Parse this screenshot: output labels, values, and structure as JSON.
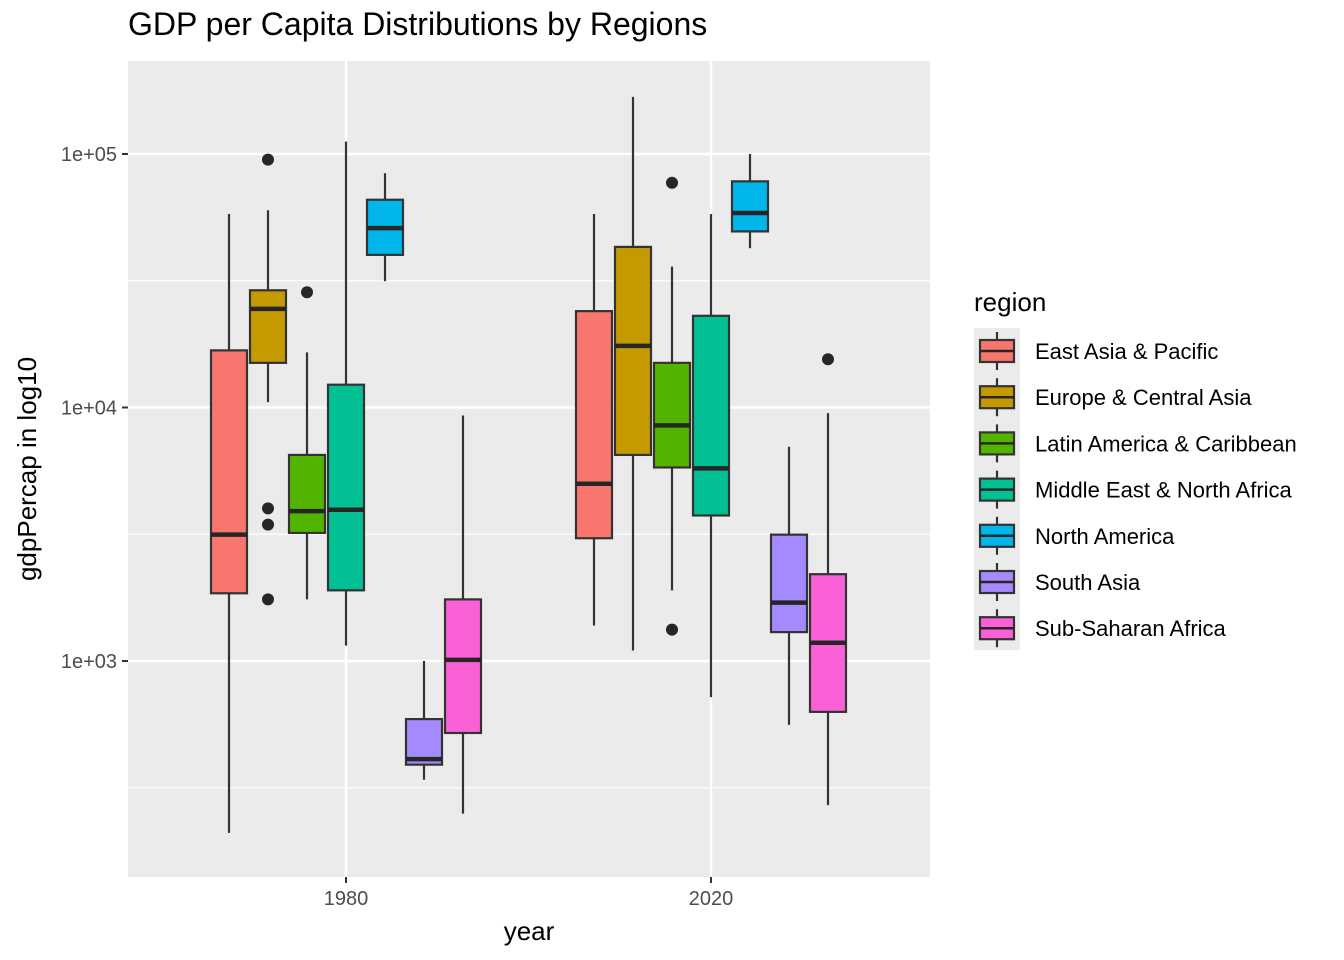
{
  "chart_data": {
    "type": "boxplot",
    "title": "GDP per Capita Distributions by Regions",
    "xlabel": "year",
    "ylabel": "gdpPercap in log10",
    "y_scale": "log10",
    "ylim": [
      150,
      250000
    ],
    "y_ticks": [
      {
        "value": 1000,
        "label": "1e+03"
      },
      {
        "value": 10000,
        "label": "1e+04"
      },
      {
        "value": 100000,
        "label": "1e+05"
      }
    ],
    "x_categories": [
      "1980",
      "2020"
    ],
    "grid": true,
    "legend": {
      "title": "region",
      "position": "right",
      "entries": [
        {
          "name": "East Asia & Pacific",
          "color": "#F8766D"
        },
        {
          "name": "Europe & Central Asia",
          "color": "#C49A00"
        },
        {
          "name": "Latin America & Caribbean",
          "color": "#53B400"
        },
        {
          "name": "Middle East & North Africa",
          "color": "#00C094"
        },
        {
          "name": "North America",
          "color": "#00B6EB"
        },
        {
          "name": "South Asia",
          "color": "#A58AFF"
        },
        {
          "name": "Sub-Saharan Africa",
          "color": "#FB61D7"
        }
      ]
    },
    "series": [
      {
        "year": "1980",
        "region": "East Asia & Pacific",
        "min": 210,
        "q1": 1850,
        "median": 3150,
        "q3": 16800,
        "max": 58000,
        "outliers": []
      },
      {
        "year": "1980",
        "region": "Europe & Central Asia",
        "min": 10500,
        "q1": 15000,
        "median": 24500,
        "q3": 29000,
        "max": 60000,
        "outliers": [
          95000,
          4000,
          3450,
          1750
        ]
      },
      {
        "year": "1980",
        "region": "Latin America & Caribbean",
        "min": 1750,
        "q1": 3200,
        "median": 3900,
        "q3": 6500,
        "max": 16500,
        "outliers": [
          28500
        ]
      },
      {
        "year": "1980",
        "region": "Middle East & North Africa",
        "min": 1150,
        "q1": 1900,
        "median": 3950,
        "q3": 12300,
        "max": 112000,
        "outliers": []
      },
      {
        "year": "1980",
        "region": "North America",
        "min": 31500,
        "q1": 40000,
        "median": 51000,
        "q3": 66000,
        "max": 84000,
        "outliers": []
      },
      {
        "year": "1980",
        "region": "South Asia",
        "min": 340,
        "q1": 390,
        "median": 410,
        "q3": 590,
        "max": 1000,
        "outliers": []
      },
      {
        "year": "1980",
        "region": "Sub-Saharan Africa",
        "min": 250,
        "q1": 520,
        "median": 1010,
        "q3": 1750,
        "max": 9300,
        "outliers": []
      },
      {
        "year": "2020",
        "region": "East Asia & Pacific",
        "min": 1380,
        "q1": 3050,
        "median": 5000,
        "q3": 24000,
        "max": 58000,
        "outliers": []
      },
      {
        "year": "2020",
        "region": "Europe & Central Asia",
        "min": 1100,
        "q1": 6500,
        "median": 17500,
        "q3": 43000,
        "max": 168000,
        "outliers": []
      },
      {
        "year": "2020",
        "region": "Latin America & Caribbean",
        "min": 1900,
        "q1": 5800,
        "median": 8500,
        "q3": 15000,
        "max": 36000,
        "outliers": [
          77000,
          1330
        ]
      },
      {
        "year": "2020",
        "region": "Middle East & North Africa",
        "min": 720,
        "q1": 3750,
        "median": 5750,
        "q3": 23000,
        "max": 58000,
        "outliers": []
      },
      {
        "year": "2020",
        "region": "North America",
        "min": 42500,
        "q1": 49500,
        "median": 58500,
        "q3": 78000,
        "max": 100000,
        "outliers": []
      },
      {
        "year": "2020",
        "region": "South Asia",
        "min": 560,
        "q1": 1300,
        "median": 1700,
        "q3": 3150,
        "max": 7000,
        "outliers": []
      },
      {
        "year": "2020",
        "region": "Sub-Saharan Africa",
        "min": 270,
        "q1": 630,
        "median": 1180,
        "q3": 2200,
        "max": 9500,
        "outliers": [
          15500
        ]
      }
    ]
  }
}
